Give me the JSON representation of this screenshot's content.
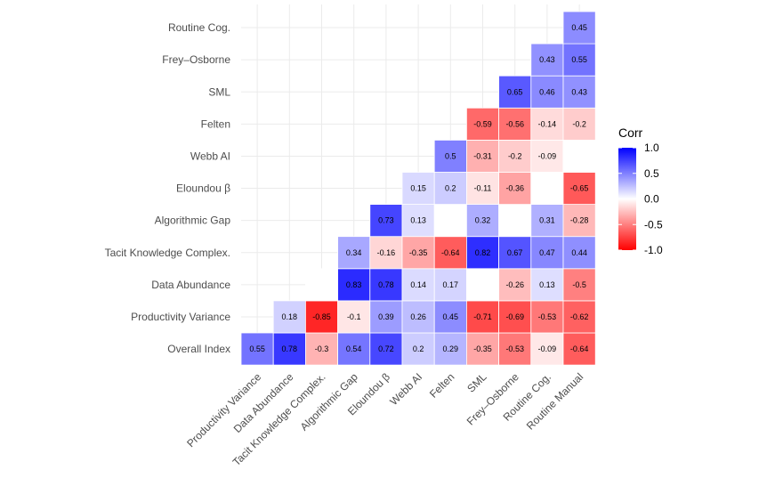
{
  "chart_data": {
    "type": "heatmap",
    "title": "",
    "xlabel": "",
    "ylabel": "",
    "y_categories": [
      "Overall Index",
      "Productivity Variance",
      "Data Abundance",
      "Tacit Knowledge Complex.",
      "Algorithmic Gap",
      "Eloundou β",
      "Webb AI",
      "Felten",
      "SML",
      "Frey–Osborne",
      "Routine Cog."
    ],
    "x_categories": [
      "Productivity Variance",
      "Data Abundance",
      "Tacit Knowledge Complex.",
      "Algorithmic Gap",
      "Eloundou β",
      "Webb AI",
      "Felten",
      "SML",
      "Frey–Osborne",
      "Routine Cog.",
      "Routine Manual"
    ],
    "values": [
      [
        0.55,
        0.78,
        -0.3,
        0.54,
        0.72,
        0.2,
        0.29,
        -0.35,
        -0.53,
        -0.09,
        -0.64
      ],
      [
        null,
        0.18,
        -0.85,
        -0.1,
        0.39,
        0.26,
        0.45,
        -0.71,
        -0.69,
        -0.53,
        -0.62
      ],
      [
        null,
        null,
        "blank",
        0.83,
        0.78,
        0.14,
        0.17,
        "blank",
        -0.26,
        0.13,
        -0.5
      ],
      [
        null,
        null,
        null,
        0.34,
        -0.16,
        -0.35,
        -0.64,
        0.82,
        0.67,
        0.47,
        0.44
      ],
      [
        null,
        null,
        null,
        null,
        0.73,
        0.13,
        "blank",
        0.32,
        "blank",
        0.31,
        -0.28
      ],
      [
        null,
        null,
        null,
        null,
        null,
        0.15,
        0.2,
        -0.11,
        -0.36,
        "blank",
        -0.65
      ],
      [
        null,
        null,
        null,
        null,
        null,
        null,
        0.5,
        -0.31,
        -0.2,
        -0.09,
        "blank"
      ],
      [
        null,
        null,
        null,
        null,
        null,
        null,
        null,
        -0.59,
        -0.56,
        -0.14,
        -0.2
      ],
      [
        null,
        null,
        null,
        null,
        null,
        null,
        null,
        null,
        0.65,
        0.46,
        0.43
      ],
      [
        null,
        null,
        null,
        null,
        null,
        null,
        null,
        null,
        null,
        0.43,
        0.55
      ],
      [
        null,
        null,
        null,
        null,
        null,
        null,
        null,
        null,
        null,
        null,
        0.45
      ]
    ],
    "legend": {
      "title": "Corr",
      "ticks": [
        "1.0",
        "0.5",
        "0.0",
        "-0.5",
        "-1.0"
      ],
      "range": [
        -1,
        1
      ],
      "position": "right"
    },
    "colors": {
      "low": "#FF0000",
      "mid": "#FFFFFF",
      "high": "#0000FF"
    },
    "grid": true
  }
}
